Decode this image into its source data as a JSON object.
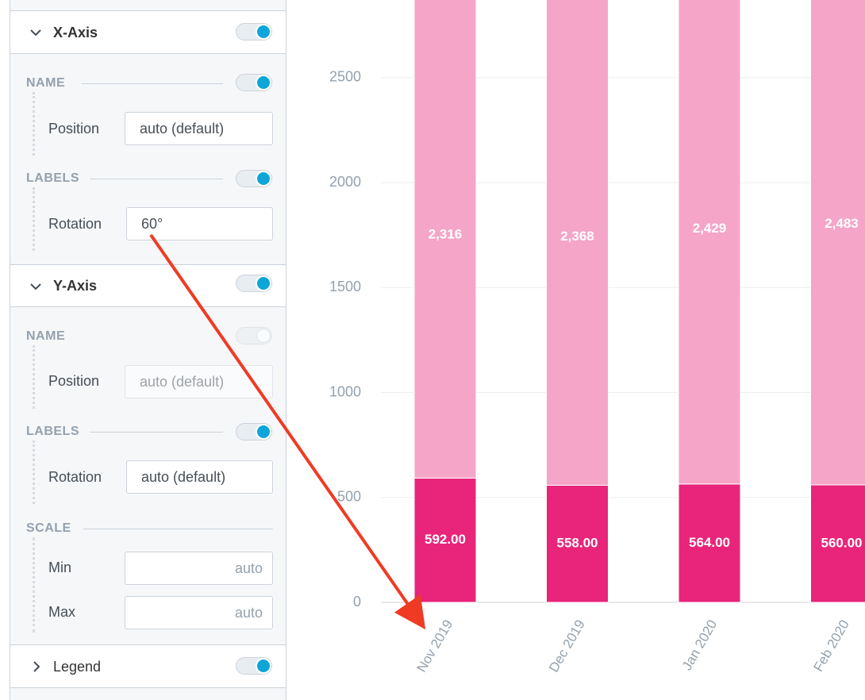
{
  "panel": {
    "x_axis": {
      "title": "X-Axis",
      "name_label": "NAME",
      "position_label": "Position",
      "position_value": "auto (default)",
      "labels_label": "LABELS",
      "rotation_label": "Rotation",
      "rotation_value": "60°"
    },
    "y_axis": {
      "title": "Y-Axis",
      "name_label": "NAME",
      "position_label": "Position",
      "position_value": "auto (default)",
      "labels_label": "LABELS",
      "rotation_label": "Rotation",
      "rotation_value": "auto (default)",
      "scale_label": "SCALE",
      "min_label": "Min",
      "min_value": "auto",
      "max_label": "Max",
      "max_value": "auto"
    },
    "legend": {
      "title": "Legend"
    }
  },
  "chart_data": {
    "type": "stacked_bar",
    "categories": [
      "Nov 2019",
      "Dec 2019",
      "Jan 2020",
      "Feb 2020"
    ],
    "series": [
      {
        "color": "#e8257a",
        "values": [
          592,
          558,
          564,
          560
        ],
        "value_labels": [
          "592.00",
          "558.00",
          "564.00",
          "560.00"
        ]
      },
      {
        "color": "#f5a5c8",
        "values": [
          2316,
          2368,
          2429,
          2483
        ],
        "value_labels": [
          "2,316",
          "2,368",
          "2,429",
          "2,483"
        ]
      }
    ],
    "ylim": [
      0,
      2870
    ],
    "yticks": [
      0,
      500,
      1000,
      1500,
      2000,
      2500
    ],
    "grid": true,
    "x_label_rotation": 60
  }
}
